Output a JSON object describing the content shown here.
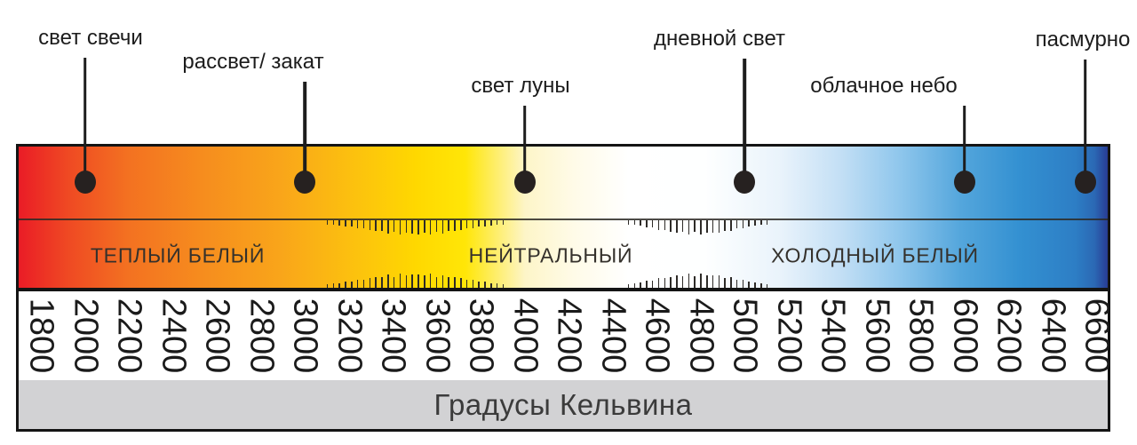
{
  "chart_data": {
    "type": "scale",
    "title": "Градусы Кельвина",
    "unit": "K",
    "axis": {
      "min": 1800,
      "max": 6600,
      "step": 200,
      "tick_labels": [
        "1800",
        "2000",
        "2200",
        "2400",
        "2600",
        "2800",
        "3000",
        "3200",
        "3400",
        "3600",
        "3800",
        "4000",
        "4200",
        "4400",
        "4600",
        "4800",
        "5000",
        "5200",
        "5400",
        "5600",
        "5800",
        "6000",
        "6200",
        "6400",
        "6600"
      ]
    },
    "zone_labels": [
      {
        "label": "ТЕПЛЫЙ БЕЛЫЙ"
      },
      {
        "label": "НЕЙТРАЛЬНЫЙ"
      },
      {
        "label": "ХОЛОДНЫЙ БЕЛЫЙ"
      }
    ],
    "markers": [
      {
        "label": "свет свечи",
        "kelvin": 2000
      },
      {
        "label": "рассвет/ закат",
        "kelvin": 3000
      },
      {
        "label": "свет луны",
        "kelvin": 4000
      },
      {
        "label": "дневной свет",
        "kelvin": 5000
      },
      {
        "label": "облачное небо",
        "kelvin": 6000
      },
      {
        "label": "пасмурно",
        "kelvin": 6550
      }
    ],
    "transition_zones": [
      [
        3100,
        3900
      ],
      [
        4470,
        5100
      ]
    ],
    "gradient_stops": [
      {
        "p": 0,
        "c": "#ea1c26"
      },
      {
        "p": 4.5,
        "c": "#ef4923"
      },
      {
        "p": 10,
        "c": "#f37121"
      },
      {
        "p": 17,
        "c": "#f68d1e"
      },
      {
        "p": 24,
        "c": "#f9a51a"
      },
      {
        "p": 31,
        "c": "#fcc20e"
      },
      {
        "p": 36.5,
        "c": "#ffd800"
      },
      {
        "p": 41,
        "c": "#ffe607"
      },
      {
        "p": 46.5,
        "c": "#fdf5c8"
      },
      {
        "p": 51,
        "c": "#fffbe8"
      },
      {
        "p": 56,
        "c": "#ffffff"
      },
      {
        "p": 63,
        "c": "#feffff"
      },
      {
        "p": 70,
        "c": "#e9f3fb"
      },
      {
        "p": 75.5,
        "c": "#c3dff5"
      },
      {
        "p": 81,
        "c": "#8ec6ec"
      },
      {
        "p": 86.5,
        "c": "#54a6dc"
      },
      {
        "p": 92,
        "c": "#3390d1"
      },
      {
        "p": 97,
        "c": "#2d7ec5"
      },
      {
        "p": 98.8,
        "c": "#2b68b4"
      },
      {
        "p": 100,
        "c": "#283c94"
      }
    ],
    "colors": {
      "dot": "#262120",
      "marker_line": "#1d1d1d",
      "frame_border": "#141414",
      "kelvin_bar_bg": "#d2d2d4"
    }
  }
}
